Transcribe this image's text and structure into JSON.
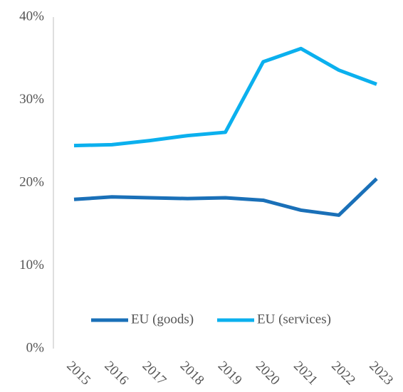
{
  "chart_data": {
    "type": "line",
    "categories": [
      "2015",
      "2016",
      "2017",
      "2018",
      "2019",
      "2020",
      "2021",
      "2022",
      "2023"
    ],
    "series": [
      {
        "name": "EU (goods)",
        "color": "#1a70b8",
        "values": [
          18.0,
          18.3,
          18.2,
          18.1,
          18.2,
          17.9,
          16.7,
          16.1,
          20.5
        ]
      },
      {
        "name": "EU (services)",
        "color": "#0bb0ee",
        "values": [
          24.5,
          24.6,
          25.1,
          25.7,
          26.1,
          34.6,
          36.2,
          33.6,
          31.9
        ]
      }
    ],
    "ylim": [
      0,
      40
    ],
    "yticks": [
      {
        "value": 0,
        "label": "0%"
      },
      {
        "value": 10,
        "label": "10%"
      },
      {
        "value": 20,
        "label": "20%"
      },
      {
        "value": 30,
        "label": "30%"
      },
      {
        "value": 40,
        "label": "40%"
      }
    ],
    "grid": false,
    "legend": "bottom"
  }
}
